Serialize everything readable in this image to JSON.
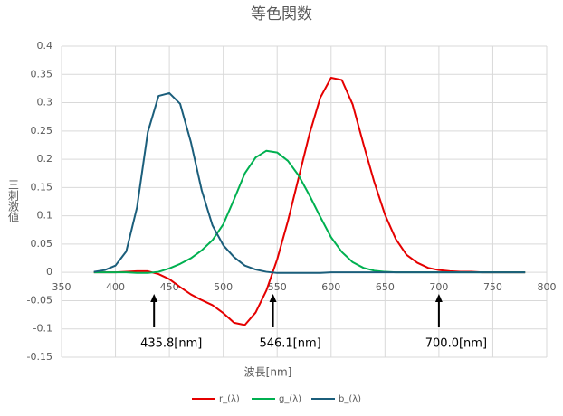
{
  "chart_data": {
    "type": "line",
    "title": "等色関数",
    "x_label": "波長[nm]",
    "y_label": "三刺激値",
    "x": [
      380,
      390,
      400,
      410,
      420,
      430,
      440,
      450,
      460,
      470,
      480,
      490,
      500,
      510,
      520,
      530,
      540,
      550,
      560,
      570,
      580,
      590,
      600,
      610,
      620,
      630,
      640,
      650,
      660,
      670,
      680,
      690,
      700,
      710,
      720,
      730,
      740,
      750,
      760,
      770,
      780
    ],
    "series": [
      {
        "name": "r_(λ)",
        "color": "#e50000",
        "values": [
          0.0,
          0.0,
          0.0,
          0.001,
          0.002,
          0.002,
          -0.003,
          -0.012,
          -0.026,
          -0.039,
          -0.049,
          -0.058,
          -0.072,
          -0.089,
          -0.093,
          -0.071,
          -0.032,
          0.023,
          0.091,
          0.168,
          0.245,
          0.309,
          0.344,
          0.34,
          0.297,
          0.227,
          0.16,
          0.102,
          0.059,
          0.031,
          0.017,
          0.008,
          0.004,
          0.002,
          0.001,
          0.001,
          0.0,
          0.0,
          0.0,
          0.0,
          0.0
        ]
      },
      {
        "name": "g_(λ)",
        "color": "#00b050",
        "values": [
          0.0,
          0.0,
          0.0,
          0.0,
          -0.001,
          -0.001,
          0.001,
          0.007,
          0.015,
          0.025,
          0.039,
          0.057,
          0.085,
          0.129,
          0.175,
          0.203,
          0.215,
          0.212,
          0.197,
          0.171,
          0.136,
          0.098,
          0.062,
          0.036,
          0.018,
          0.008,
          0.003,
          0.001,
          0.0,
          0.0,
          0.0,
          0.0,
          0.0,
          0.0,
          0.0,
          0.0,
          0.0,
          0.0,
          0.0,
          0.0,
          0.0
        ]
      },
      {
        "name": "b_(λ)",
        "color": "#1b5e7b",
        "values": [
          0.001,
          0.004,
          0.012,
          0.037,
          0.115,
          0.248,
          0.312,
          0.317,
          0.298,
          0.23,
          0.145,
          0.083,
          0.048,
          0.027,
          0.012,
          0.005,
          0.001,
          -0.001,
          -0.001,
          -0.001,
          -0.001,
          -0.001,
          0.0,
          0.0,
          0.0,
          0.0,
          0.0,
          0.0,
          0.0,
          0.0,
          0.0,
          0.0,
          0.0,
          0.0,
          0.0,
          0.0,
          0.0,
          0.0,
          0.0,
          0.0,
          0.0
        ]
      }
    ],
    "xlim": [
      350,
      800
    ],
    "xticks": [
      350,
      400,
      450,
      500,
      550,
      600,
      650,
      700,
      750,
      800
    ],
    "ylim": [
      -0.15,
      0.4
    ],
    "yticks": [
      0.4,
      0.35,
      0.3,
      0.25,
      0.2,
      0.15,
      0.1,
      0.05,
      0,
      -0.05,
      -0.1,
      -0.15
    ],
    "grid": true,
    "legend": "bottom",
    "annotations": [
      {
        "text": "435.8[nm]",
        "x": 435.8
      },
      {
        "text": "546.1[nm]",
        "x": 546.1
      },
      {
        "text": "700.0[nm]",
        "x": 700.0
      }
    ]
  }
}
